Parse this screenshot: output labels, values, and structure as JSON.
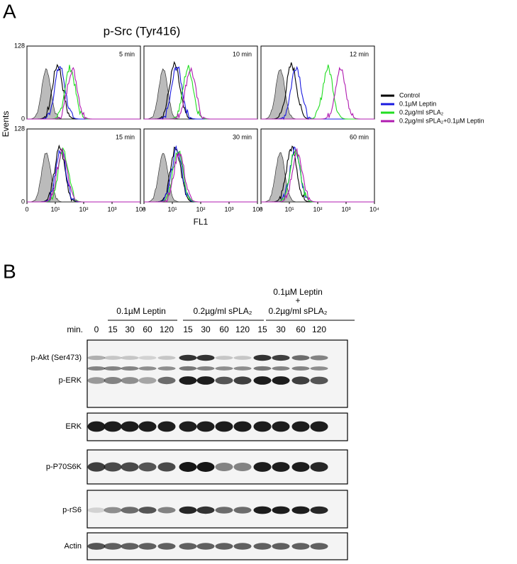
{
  "panel_a": {
    "label": "A",
    "title": "p-Src (Tyr416)",
    "y_axis_label": "Events",
    "y_ticks": [
      "128",
      "0"
    ],
    "x_axis_label": "FL1",
    "x_ticks": [
      "0",
      "10¹",
      "10²",
      "10³",
      "10⁴"
    ],
    "plots": [
      "5 min",
      "10 min",
      "12 min",
      "15 min",
      "30 min",
      "60 min"
    ],
    "legend": [
      "Control",
      "0.1µM Leptin",
      "0.2µg/ml sPLA₂",
      "0.2µg/ml sPLA₂+0.1µM Leptin"
    ]
  },
  "panel_b": {
    "label": "B",
    "groups": [
      "0.1µM Leptin",
      "0.2µg/ml sPLA₂"
    ],
    "combo_group": [
      "0.1µM Leptin",
      "+",
      "0.2µg/ml sPLA₂"
    ],
    "min_label": "min.",
    "lanes": [
      "0",
      "15",
      "30",
      "60",
      "120",
      "15",
      "30",
      "60",
      "120",
      "15",
      "30",
      "60",
      "120"
    ],
    "blots": [
      "p-Akt (Ser473)",
      "p-ERK",
      "ERK",
      "p-P70S6K",
      "p-rS6",
      "Actin"
    ]
  }
}
